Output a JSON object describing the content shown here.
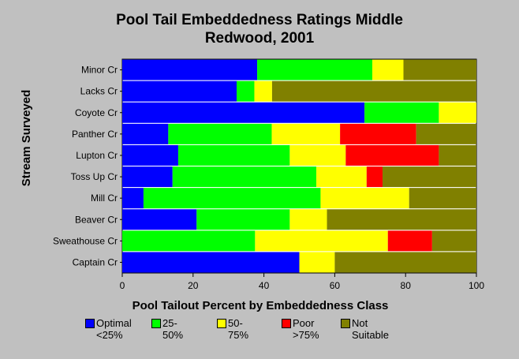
{
  "chart_data": {
    "type": "bar",
    "stacked": true,
    "orientation": "horizontal",
    "title": "Pool Tail Embeddedness Ratings Middle\nRedwood, 2001",
    "xlabel": "Pool Tailout Percent by Embeddedness Class",
    "ylabel": "Stream Surveyed",
    "xlim": [
      0,
      100
    ],
    "xticks": [
      0,
      20,
      40,
      60,
      80,
      100
    ],
    "categories": [
      "Minor Cr",
      "Lacks Cr",
      "Coyote Cr",
      "Panther Cr",
      "Lupton Cr",
      "Toss Up Cr",
      "Mill Cr",
      "Beaver Cr",
      "Sweathouse Cr",
      "Captain Cr"
    ],
    "series": [
      {
        "name": "Optimal <25%",
        "color": "#0000ff",
        "values": [
          38.1,
          32.3,
          68.4,
          13.0,
          15.8,
          14.2,
          6.0,
          21.0,
          0,
          50.0
        ]
      },
      {
        "name": "25-50%",
        "color": "#00ff00",
        "values": [
          32.5,
          5.0,
          21.0,
          29.2,
          31.5,
          40.6,
          50.0,
          26.3,
          37.5,
          0
        ]
      },
      {
        "name": "50-75%",
        "color": "#ffff00",
        "values": [
          8.8,
          5.0,
          10.6,
          19.3,
          15.8,
          14.2,
          25.0,
          10.5,
          37.5,
          10.0
        ]
      },
      {
        "name": "Poor >75%",
        "color": "#ff0000",
        "values": [
          0,
          0,
          0,
          21.5,
          26.3,
          4.5,
          0,
          0,
          12.5,
          0
        ]
      },
      {
        "name": "Not Suitable",
        "color": "#808000",
        "values": [
          20.6,
          57.7,
          0,
          17.0,
          10.6,
          26.5,
          19.0,
          42.2,
          12.5,
          40.0
        ]
      }
    ],
    "grid": false,
    "legend_position": "bottom"
  },
  "legend": [
    {
      "label": "Optimal\n<25%",
      "color": "#0000ff"
    },
    {
      "label": "25-50%",
      "color": "#00ff00"
    },
    {
      "label": "50-75%",
      "color": "#ffff00"
    },
    {
      "label": "Poor\n>75%",
      "color": "#ff0000"
    },
    {
      "label": "Not\nSuitable",
      "color": "#808000"
    }
  ]
}
